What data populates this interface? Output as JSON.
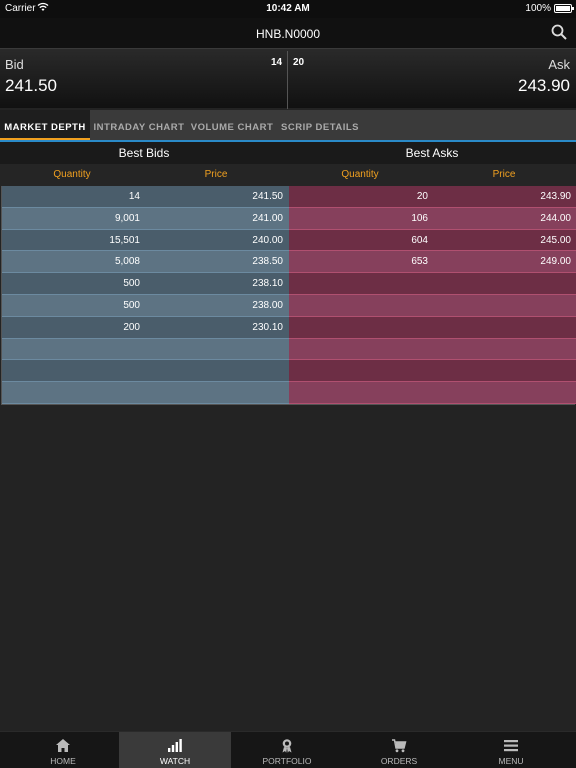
{
  "status_bar": {
    "carrier": "Carrier",
    "time": "10:42 AM",
    "battery": "100%"
  },
  "header": {
    "title": "HNB.N0000",
    "search_icon": "search-icon"
  },
  "quote": {
    "bid_label": "Bid",
    "bid_price": "241.50",
    "bid_qty": "14",
    "ask_label": "Ask",
    "ask_price": "243.90",
    "ask_qty": "20"
  },
  "tabs": [
    {
      "label": "MARKET DEPTH",
      "active": true
    },
    {
      "label": "INTRADAY CHART",
      "active": false
    },
    {
      "label": "VOLUME CHART",
      "active": false
    },
    {
      "label": "SCRIP DETAILS",
      "active": false
    }
  ],
  "depth": {
    "best_bids": "Best Bids",
    "best_asks": "Best Asks",
    "columns": {
      "bid_qty": "Quantity",
      "bid_price": "Price",
      "ask_qty": "Quantity",
      "ask_price": "Price"
    },
    "rows": [
      {
        "bid_qty": "14",
        "bid_price": "241.50",
        "ask_qty": "20",
        "ask_price": "243.90"
      },
      {
        "bid_qty": "9,001",
        "bid_price": "241.00",
        "ask_qty": "106",
        "ask_price": "244.00"
      },
      {
        "bid_qty": "15,501",
        "bid_price": "240.00",
        "ask_qty": "604",
        "ask_price": "245.00"
      },
      {
        "bid_qty": "5,008",
        "bid_price": "238.50",
        "ask_qty": "653",
        "ask_price": "249.00"
      },
      {
        "bid_qty": "500",
        "bid_price": "238.10",
        "ask_qty": "",
        "ask_price": ""
      },
      {
        "bid_qty": "500",
        "bid_price": "238.00",
        "ask_qty": "",
        "ask_price": ""
      },
      {
        "bid_qty": "200",
        "bid_price": "230.10",
        "ask_qty": "",
        "ask_price": ""
      },
      {
        "bid_qty": "",
        "bid_price": "",
        "ask_qty": "",
        "ask_price": ""
      },
      {
        "bid_qty": "",
        "bid_price": "",
        "ask_qty": "",
        "ask_price": ""
      },
      {
        "bid_qty": "",
        "bid_price": "",
        "ask_qty": "",
        "ask_price": ""
      }
    ]
  },
  "nav": [
    {
      "label": "HOME",
      "icon": "home-icon",
      "active": false
    },
    {
      "label": "WATCH",
      "icon": "bar-chart-icon",
      "active": true
    },
    {
      "label": "PORTFOLIO",
      "icon": "award-icon",
      "active": false
    },
    {
      "label": "ORDERS",
      "icon": "cart-icon",
      "active": false
    },
    {
      "label": "MENU",
      "icon": "menu-icon",
      "active": false
    }
  ],
  "colors": {
    "accent": "#2a8ac8",
    "highlight": "#f0a020",
    "bid": "#4a5d6b",
    "ask": "#6d2e45"
  }
}
